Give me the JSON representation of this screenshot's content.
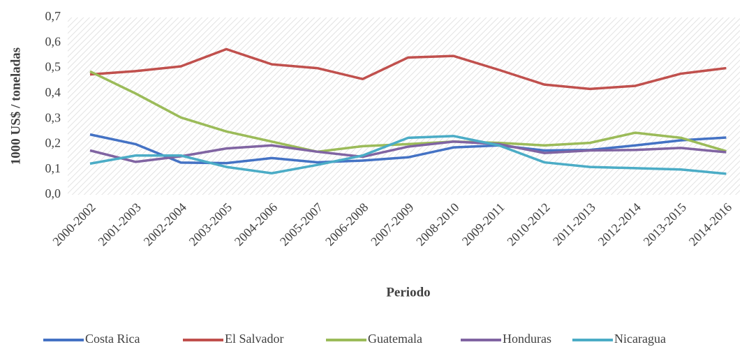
{
  "chart_data": {
    "type": "line",
    "y_label": "1000 US$ / toneladas",
    "x_label": "Periodo",
    "categories": [
      "2000-2002",
      "2001-2003",
      "2002-2004",
      "2003-2005",
      "2004-2006",
      "2005-2007",
      "2006-2008",
      "2007-2009",
      "2008-2010",
      "2009-2011",
      "2010-2012",
      "2011-2013",
      "2012-2014",
      "2013-2015",
      "2014-2016"
    ],
    "series": [
      {
        "name": "Costa Rica",
        "color": "#4472c4",
        "values": [
          0.238,
          0.2,
          0.127,
          0.125,
          0.145,
          0.128,
          0.135,
          0.148,
          0.187,
          0.195,
          0.175,
          0.177,
          0.195,
          0.215,
          0.226
        ]
      },
      {
        "name": "El Salvador",
        "color": "#c0504d",
        "values": [
          0.475,
          0.488,
          0.507,
          0.575,
          0.515,
          0.5,
          0.457,
          0.542,
          0.548,
          0.493,
          0.435,
          0.418,
          0.43,
          0.478,
          0.5
        ]
      },
      {
        "name": "Guatemala",
        "color": "#9bbb59",
        "values": [
          0.487,
          0.4,
          0.305,
          0.25,
          0.21,
          0.17,
          0.192,
          0.2,
          0.21,
          0.205,
          0.195,
          0.205,
          0.245,
          0.225,
          0.172
        ]
      },
      {
        "name": "Honduras",
        "color": "#8064a2",
        "values": [
          0.175,
          0.13,
          0.152,
          0.183,
          0.195,
          0.17,
          0.15,
          0.19,
          0.21,
          0.2,
          0.165,
          0.175,
          0.177,
          0.185,
          0.168
        ]
      },
      {
        "name": "Nicaragua",
        "color": "#4bacc6",
        "values": [
          0.123,
          0.155,
          0.155,
          0.11,
          0.085,
          0.118,
          0.155,
          0.225,
          0.232,
          0.195,
          0.128,
          0.11,
          0.105,
          0.1,
          0.083
        ]
      }
    ],
    "ylim": [
      0,
      0.7
    ],
    "yticks": [
      {
        "value": 0,
        "label": "0,0"
      },
      {
        "value": 0.1,
        "label": "0,1"
      },
      {
        "value": 0.2,
        "label": "0,2"
      },
      {
        "value": 0.3,
        "label": "0,3"
      },
      {
        "value": 0.4,
        "label": "0,4"
      },
      {
        "value": 0.5,
        "label": "0,5"
      },
      {
        "value": 0.6,
        "label": "0,6"
      },
      {
        "value": 0.7,
        "label": "0,7"
      }
    ],
    "legend": "bottom"
  }
}
